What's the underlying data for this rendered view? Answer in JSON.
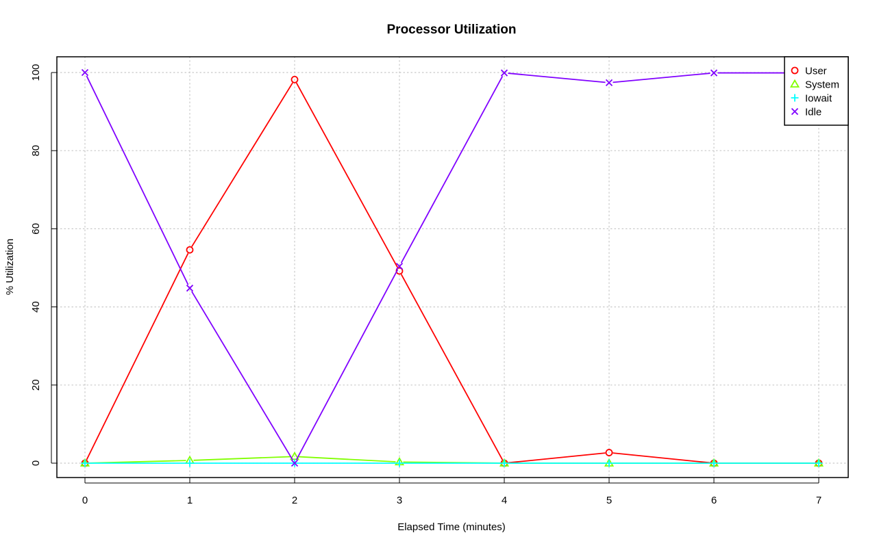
{
  "chart_data": {
    "type": "line",
    "title": "Processor Utilization",
    "xlabel": "Elapsed Time (minutes)",
    "ylabel": "% Utilization",
    "x": [
      0,
      1,
      2,
      3,
      4,
      5,
      6,
      7
    ],
    "xlim": [
      0,
      7
    ],
    "ylim": [
      0,
      100
    ],
    "xticks": [
      "0",
      "1",
      "2",
      "3",
      "4",
      "5",
      "6",
      "7"
    ],
    "yticks": [
      "0",
      "20",
      "40",
      "60",
      "80",
      "100"
    ],
    "grid": true,
    "grid_style": "dotted",
    "legend_position": "top-right",
    "series": [
      {
        "name": "User",
        "color": "#ff0000",
        "marker": "circle",
        "values": [
          0,
          54.6,
          98.2,
          49.2,
          0,
          2.7,
          0,
          0
        ]
      },
      {
        "name": "System",
        "color": "#80ff00",
        "marker": "triangle",
        "values": [
          0,
          0.7,
          1.7,
          0.3,
          0,
          0,
          0,
          0
        ]
      },
      {
        "name": "Iowait",
        "color": "#00ffff",
        "marker": "plus",
        "values": [
          0,
          0,
          0,
          0,
          0,
          0,
          0,
          0
        ]
      },
      {
        "name": "Idle",
        "color": "#8000ff",
        "marker": "cross",
        "values": [
          100,
          44.8,
          0,
          50.4,
          99.9,
          97.4,
          99.9,
          99.9
        ]
      }
    ]
  }
}
